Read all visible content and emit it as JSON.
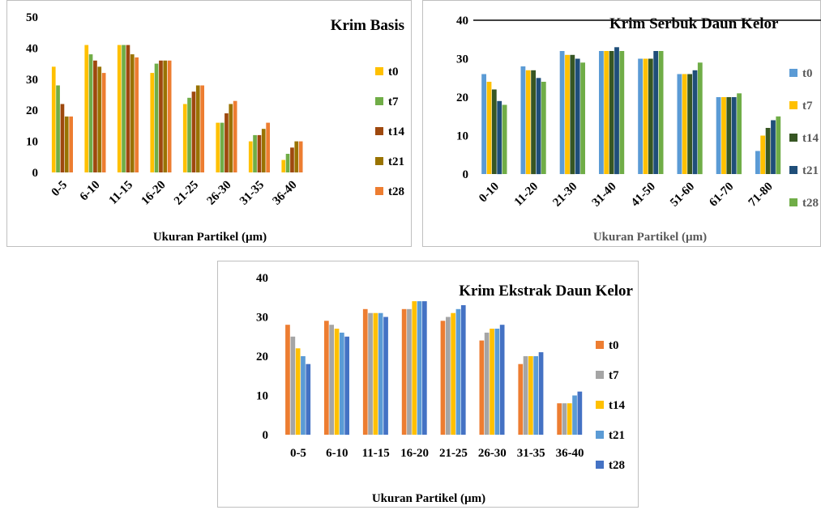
{
  "chart_data": [
    {
      "type": "bar",
      "title": "Krim Basis",
      "xlabel": "Ukuran Partikel (µm)",
      "ylabel": "",
      "ylim": [
        0,
        50
      ],
      "yticks": [
        0,
        10,
        20,
        30,
        40,
        50
      ],
      "categories": [
        "0-5",
        "6-10",
        "11-15",
        "16-20",
        "21-25",
        "26-30",
        "31-35",
        "36-40"
      ],
      "series": [
        {
          "name": "t0",
          "color": "#FFC000",
          "values": [
            34,
            41,
            41,
            32,
            22,
            16,
            10,
            4
          ]
        },
        {
          "name": "t7",
          "color": "#70AD47",
          "values": [
            28,
            38,
            41,
            35,
            24,
            16,
            12,
            6
          ]
        },
        {
          "name": "t14",
          "color": "#9E480E",
          "values": [
            22,
            36,
            41,
            36,
            26,
            19,
            12,
            8
          ]
        },
        {
          "name": "t21",
          "color": "#997300",
          "values": [
            18,
            34,
            38,
            36,
            28,
            22,
            14,
            10
          ]
        },
        {
          "name": "t28",
          "color": "#ED7D31",
          "values": [
            18,
            32,
            37,
            36,
            28,
            23,
            16,
            10
          ]
        }
      ],
      "legend": "right",
      "grid": false,
      "rotated_labels": true
    },
    {
      "type": "bar",
      "title": "Krim Serbuk Daun Kelor",
      "xlabel": "Ukuran Partikel (µm)",
      "ylabel": "",
      "ylim": [
        0,
        40
      ],
      "yticks": [
        0,
        10,
        20,
        30,
        40
      ],
      "categories": [
        "0-10",
        "11-20",
        "21-30",
        "31-40",
        "41-50",
        "51-60",
        "61-70",
        "71-80"
      ],
      "series": [
        {
          "name": "t0",
          "color": "#5B9BD5",
          "values": [
            26,
            28,
            32,
            32,
            30,
            26,
            20,
            6
          ]
        },
        {
          "name": "t7",
          "color": "#FFC000",
          "values": [
            24,
            27,
            31,
            32,
            30,
            26,
            20,
            10
          ]
        },
        {
          "name": "t14",
          "color": "#375623",
          "values": [
            22,
            27,
            31,
            32,
            30,
            26,
            20,
            12
          ]
        },
        {
          "name": "t21",
          "color": "#1F4E79",
          "values": [
            19,
            25,
            30,
            33,
            32,
            27,
            20,
            14
          ]
        },
        {
          "name": "t28",
          "color": "#70AD47",
          "values": [
            18,
            24,
            29,
            32,
            32,
            29,
            21,
            15
          ]
        }
      ],
      "legend": "right",
      "grid": false,
      "rotated_labels": true
    },
    {
      "type": "bar",
      "title": "Krim Ekstrak Daun Kelor",
      "xlabel": "Ukuran Partikel (µm)",
      "ylabel": "",
      "ylim": [
        0,
        40
      ],
      "yticks": [
        0,
        10,
        20,
        30,
        40
      ],
      "categories": [
        "0-5",
        "6-10",
        "11-15",
        "16-20",
        "21-25",
        "26-30",
        "31-35",
        "36-40"
      ],
      "series": [
        {
          "name": "t0",
          "color": "#ED7D31",
          "values": [
            28,
            29,
            32,
            32,
            29,
            24,
            18,
            8
          ]
        },
        {
          "name": "t7",
          "color": "#A5A5A5",
          "values": [
            25,
            28,
            31,
            32,
            30,
            26,
            20,
            8
          ]
        },
        {
          "name": "t14",
          "color": "#FFC000",
          "values": [
            22,
            27,
            31,
            34,
            31,
            27,
            20,
            8
          ]
        },
        {
          "name": "t21",
          "color": "#5B9BD5",
          "values": [
            20,
            26,
            31,
            34,
            32,
            27,
            20,
            10
          ]
        },
        {
          "name": "t28",
          "color": "#4472C4",
          "values": [
            18,
            25,
            30,
            34,
            33,
            28,
            21,
            11
          ]
        }
      ],
      "legend": "right",
      "grid": false,
      "rotated_labels": false
    }
  ]
}
